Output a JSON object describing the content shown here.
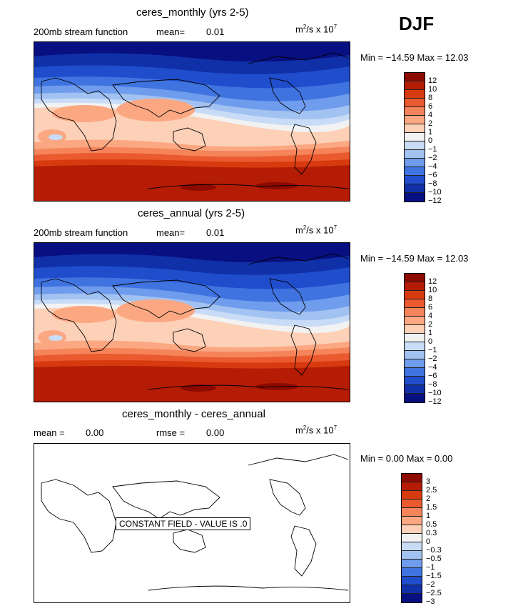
{
  "season": "DJF",
  "panels": [
    {
      "title": "ceres_monthly (yrs 2-5)",
      "left_label": "200mb stream function",
      "stat_label": "mean=",
      "stat_value": "0.01",
      "units_base": "m",
      "units_exp": "2",
      "units_mid": "/s x 10",
      "units_exp2": "7",
      "minmax": "Min = −14.59 Max =  12.03",
      "colorbar_labels": [
        "12",
        "10",
        "8",
        "6",
        "4",
        "2",
        "1",
        "0",
        "−1",
        "−2",
        "−4",
        "−6",
        "−8",
        "−10",
        "−12"
      ]
    },
    {
      "title": "ceres_annual (yrs 2-5)",
      "left_label": "200mb stream function",
      "stat_label": "mean=",
      "stat_value": "0.01",
      "units_base": "m",
      "units_exp": "2",
      "units_mid": "/s x 10",
      "units_exp2": "7",
      "minmax": "Min = −14.59 Max =  12.03",
      "colorbar_labels": [
        "12",
        "10",
        "8",
        "6",
        "4",
        "2",
        "1",
        "0",
        "−1",
        "−2",
        "−4",
        "−6",
        "−8",
        "−10",
        "−12"
      ]
    },
    {
      "title": "ceres_monthly - ceres_annual",
      "left_label": "mean =",
      "left_value": "0.00",
      "stat_label": "rmse =",
      "stat_value": "0.00",
      "units_base": "m",
      "units_exp": "2",
      "units_mid": "/s x 10",
      "units_exp2": "7",
      "minmax": "Min =   0.00 Max =   0.00",
      "constant_text": "CONSTANT FIELD - VALUE IS .0",
      "colorbar_labels": [
        "3",
        "2.5",
        "2",
        "1.5",
        "1",
        "0.5",
        "0.3",
        "0",
        "−0.3",
        "−0.5",
        "−1",
        "−1.5",
        "−2",
        "−2.5",
        "−3"
      ]
    }
  ],
  "colors": {
    "scale": [
      "#8c0a00",
      "#b51c05",
      "#d83a10",
      "#ea5a2e",
      "#f5845a",
      "#fba882",
      "#fdd0b8",
      "#f2f2f2",
      "#c9dcf7",
      "#a2c2f2",
      "#6f9cec",
      "#3f73e0",
      "#1f4dcc",
      "#1030a8",
      "#080f80"
    ]
  }
}
